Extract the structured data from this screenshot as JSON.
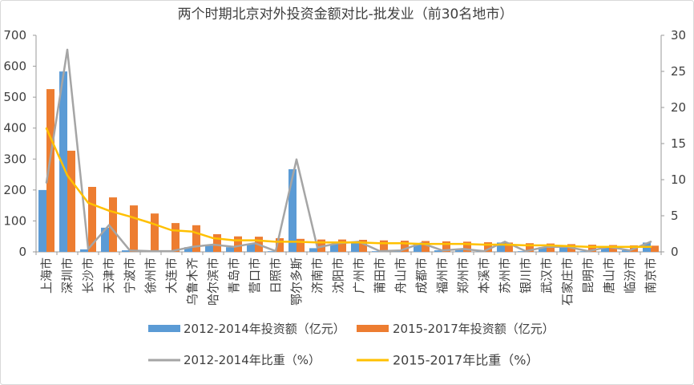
{
  "chart_data": {
    "type": "bar",
    "title": "两个时期北京对外投资金额对比-批发业（前30名地市）",
    "categories": [
      "上海市",
      "深圳市",
      "长沙市",
      "天津市",
      "宁波市",
      "徐州市",
      "大连市",
      "乌鲁木齐",
      "哈尔滨市",
      "青岛市",
      "营口市",
      "日照市",
      "鄂尔多斯",
      "济南市",
      "沈阳市",
      "广州市",
      "莆田市",
      "舟山市",
      "成都市",
      "福州市",
      "郑州市",
      "本溪市",
      "苏州市",
      "银川市",
      "武汉市",
      "石家庄市",
      "昆明市",
      "唐山市",
      "临汾市",
      "南京市"
    ],
    "series": [
      {
        "name": "2012-2014年投资额（亿元）",
        "type": "bar",
        "axis": "left",
        "color": "#5B9BD5",
        "values": [
          200,
          583,
          8,
          78,
          5,
          2,
          1,
          15,
          20,
          15,
          25,
          2,
          267,
          12,
          25,
          30,
          2,
          5,
          25,
          5,
          8,
          1,
          30,
          2,
          15,
          15,
          2,
          15,
          5,
          30
        ]
      },
      {
        "name": "2015-2017年投资额（亿元）",
        "type": "bar",
        "axis": "left",
        "color": "#ED7D31",
        "values": [
          526,
          327,
          210,
          176,
          150,
          124,
          93,
          86,
          57,
          50,
          49,
          44,
          42,
          40,
          40,
          39,
          37,
          36,
          35,
          34,
          33,
          31,
          30,
          28,
          27,
          25,
          23,
          22,
          21,
          20
        ]
      },
      {
        "name": "2012-2014年比重（%）",
        "type": "line",
        "axis": "right",
        "color": "#A5A5A5",
        "values": [
          9.6,
          28.0,
          0.4,
          3.7,
          0.2,
          0.1,
          0.1,
          0.7,
          1.0,
          0.7,
          1.2,
          0.1,
          12.8,
          0.6,
          1.2,
          1.4,
          0.1,
          0.2,
          1.2,
          0.2,
          0.4,
          0.1,
          1.4,
          0.1,
          0.7,
          0.7,
          0.1,
          0.7,
          0.2,
          1.4
        ]
      },
      {
        "name": "2015-2017年比重（%）",
        "type": "line",
        "axis": "right",
        "color": "#FFC000",
        "values": [
          17.1,
          10.6,
          6.8,
          5.7,
          4.9,
          4.0,
          3.0,
          2.8,
          1.9,
          1.6,
          1.6,
          1.4,
          1.4,
          1.3,
          1.3,
          1.3,
          1.2,
          1.2,
          1.1,
          1.1,
          1.1,
          1.0,
          1.0,
          0.9,
          0.9,
          0.8,
          0.7,
          0.7,
          0.7,
          0.7
        ]
      }
    ],
    "ylim": [
      0,
      700
    ],
    "yticks": [
      0,
      100,
      200,
      300,
      400,
      500,
      600,
      700
    ],
    "y2lim": [
      0,
      30
    ],
    "y2ticks": [
      0,
      5,
      10,
      15,
      20,
      25,
      30
    ],
    "grid": false,
    "legend": "bottom"
  }
}
